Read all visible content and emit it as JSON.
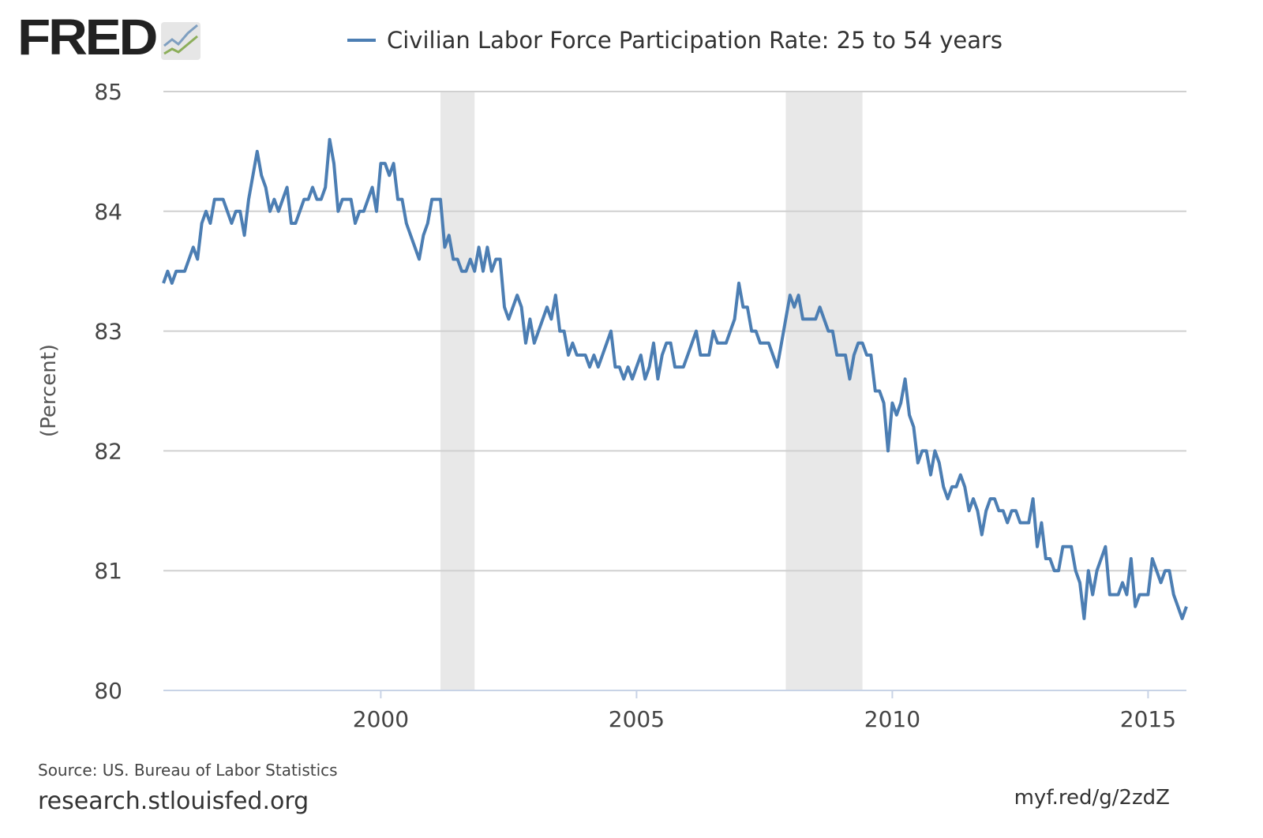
{
  "logo": {
    "text": "FRED"
  },
  "footer": {
    "source": "Source: US. Bureau of Labor Statistics",
    "site": "research.stlouisfed.org",
    "short_link": "myf.red/g/2zdZ"
  },
  "colors": {
    "series": "#4c7eb3",
    "recession": "#e8e8e8",
    "grid": "#d0d0d0"
  },
  "chart_data": {
    "type": "line",
    "title": "",
    "xlabel": "",
    "ylabel": "(Percent)",
    "ylim": [
      80,
      85
    ],
    "yticks": [
      "80",
      "81",
      "82",
      "83",
      "84",
      "85"
    ],
    "xticks": [
      "2000",
      "2005",
      "2010",
      "2015"
    ],
    "grid": true,
    "legend_position": "top-center",
    "frequency": "monthly",
    "start": "1995-10",
    "end": "2015-10",
    "recessions": [
      [
        "2001-03",
        "2001-11"
      ],
      [
        "2007-12",
        "2009-06"
      ]
    ],
    "series": [
      {
        "name": "Civilian Labor Force Participation Rate: 25 to 54 years",
        "values": [
          83.4,
          83.5,
          83.4,
          83.5,
          83.5,
          83.5,
          83.6,
          83.7,
          83.6,
          83.9,
          84.0,
          83.9,
          84.1,
          84.1,
          84.1,
          84.0,
          83.9,
          84.0,
          84.0,
          83.8,
          84.1,
          84.3,
          84.5,
          84.3,
          84.2,
          84.0,
          84.1,
          84.0,
          84.1,
          84.2,
          83.9,
          83.9,
          84.0,
          84.1,
          84.1,
          84.2,
          84.1,
          84.1,
          84.2,
          84.6,
          84.4,
          84.0,
          84.1,
          84.1,
          84.1,
          83.9,
          84.0,
          84.0,
          84.1,
          84.2,
          84.0,
          84.4,
          84.4,
          84.3,
          84.4,
          84.1,
          84.1,
          83.9,
          83.8,
          83.7,
          83.6,
          83.8,
          83.9,
          84.1,
          84.1,
          84.1,
          83.7,
          83.8,
          83.6,
          83.6,
          83.5,
          83.5,
          83.6,
          83.5,
          83.7,
          83.5,
          83.7,
          83.5,
          83.6,
          83.6,
          83.2,
          83.1,
          83.2,
          83.3,
          83.2,
          82.9,
          83.1,
          82.9,
          83.0,
          83.1,
          83.2,
          83.1,
          83.3,
          83.0,
          83.0,
          82.8,
          82.9,
          82.8,
          82.8,
          82.8,
          82.7,
          82.8,
          82.7,
          82.8,
          82.9,
          83.0,
          82.7,
          82.7,
          82.6,
          82.7,
          82.6,
          82.7,
          82.8,
          82.6,
          82.7,
          82.9,
          82.6,
          82.8,
          82.9,
          82.9,
          82.7,
          82.7,
          82.7,
          82.8,
          82.9,
          83.0,
          82.8,
          82.8,
          82.8,
          83.0,
          82.9,
          82.9,
          82.9,
          83.0,
          83.1,
          83.4,
          83.2,
          83.2,
          83.0,
          83.0,
          82.9,
          82.9,
          82.9,
          82.8,
          82.7,
          82.9,
          83.1,
          83.3,
          83.2,
          83.3,
          83.1,
          83.1,
          83.1,
          83.1,
          83.2,
          83.1,
          83.0,
          83.0,
          82.8,
          82.8,
          82.8,
          82.6,
          82.8,
          82.9,
          82.9,
          82.8,
          82.8,
          82.5,
          82.5,
          82.4,
          82.0,
          82.4,
          82.3,
          82.4,
          82.6,
          82.3,
          82.2,
          81.9,
          82.0,
          82.0,
          81.8,
          82.0,
          81.9,
          81.7,
          81.6,
          81.7,
          81.7,
          81.8,
          81.7,
          81.5,
          81.6,
          81.5,
          81.3,
          81.5,
          81.6,
          81.6,
          81.5,
          81.5,
          81.4,
          81.5,
          81.5,
          81.4,
          81.4,
          81.4,
          81.6,
          81.2,
          81.4,
          81.1,
          81.1,
          81.0,
          81.0,
          81.2,
          81.2,
          81.2,
          81.0,
          80.9,
          80.6,
          81.0,
          80.8,
          81.0,
          81.1,
          81.2,
          80.8,
          80.8,
          80.8,
          80.9,
          80.8,
          81.1,
          80.7,
          80.8,
          80.8,
          80.8,
          81.1,
          81.0,
          80.9,
          81.0,
          81.0,
          80.8,
          80.7,
          80.6,
          80.7
        ]
      }
    ]
  }
}
